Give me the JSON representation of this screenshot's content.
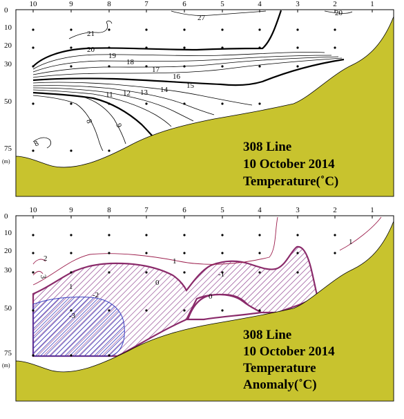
{
  "chart_data": [
    {
      "type": "contour",
      "caption": [
        "308 Line",
        "10 October 2014",
        "Temperature(˚C)"
      ],
      "x_ticks": [
        "10",
        "9",
        "8",
        "7",
        "6",
        "5",
        "4",
        "3",
        "2",
        "1"
      ],
      "y_ticks": [
        "0",
        "10",
        "20",
        "30",
        "50",
        "75"
      ],
      "y_unit": "(m)",
      "contour_levels": [
        "27",
        "20",
        "21",
        "20",
        "19",
        "18",
        "17",
        "16",
        "15",
        "14",
        "13",
        "12",
        "11",
        "9",
        "8",
        "8"
      ],
      "colors": {
        "seabed": "#c8c32e",
        "contour": "#000000"
      }
    },
    {
      "type": "contour",
      "caption": [
        "308 Line",
        "10 October 2014",
        "Temperature",
        "Anomaly(˚C)"
      ],
      "x_ticks": [
        "10",
        "9",
        "8",
        "7",
        "6",
        "5",
        "4",
        "3",
        "2",
        "1"
      ],
      "y_ticks": [
        "0",
        "10",
        "20",
        "30",
        "50",
        "75"
      ],
      "y_unit": "(m)",
      "contour_levels": [
        "2",
        "3",
        "1",
        "1",
        "1",
        "0",
        "0",
        "-1",
        "-2",
        "-3"
      ],
      "colors": {
        "seabed": "#c8c32e",
        "positive": "#9b1c4b",
        "negative_hatch": "#3b3fc0",
        "zero_hatch": "#7a2a7a"
      }
    }
  ]
}
